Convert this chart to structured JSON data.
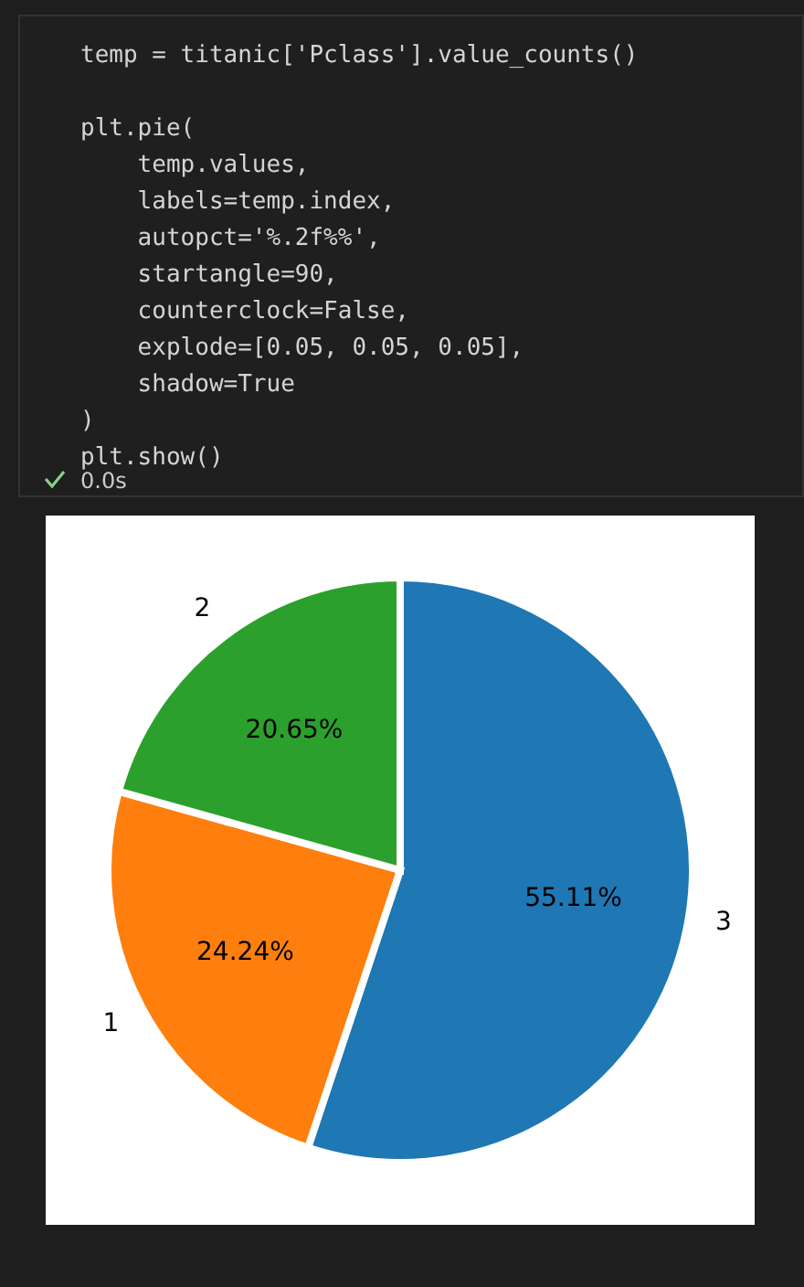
{
  "chart_data": {
    "type": "pie",
    "categories": [
      "3",
      "1",
      "2"
    ],
    "values": [
      55.11,
      24.24,
      20.65
    ],
    "colors": [
      "#1f77b4",
      "#ff7f0e",
      "#2ca02c"
    ],
    "value_labels": [
      "55.11%",
      "24.24%",
      "20.65%"
    ],
    "annotations": [
      "temp = titanic['Pclass'].value_counts()",
      "plt.pie(",
      "    temp.values,",
      "    labels=temp.index,",
      "    autopct='%.2f%%',",
      "    startangle=90,",
      "    counterclock=False,",
      "    explode=[0.05, 0.05, 0.05],",
      "    shadow=True",
      ")",
      "plt.show()",
      "0.0s"
    ]
  }
}
